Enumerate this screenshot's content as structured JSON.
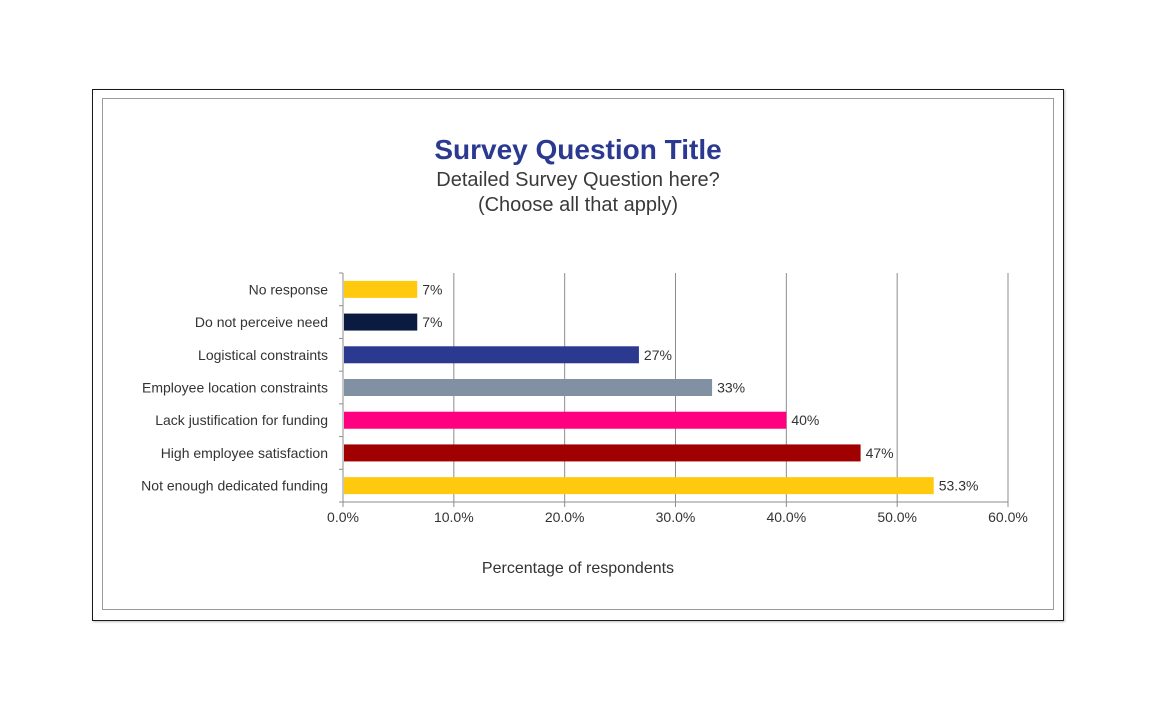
{
  "chart_data": {
    "type": "bar",
    "orientation": "horizontal",
    "title": "Survey Question Title",
    "subtitle_lines": [
      "Detailed Survey Question here?",
      "(Choose all that apply)"
    ],
    "xlabel": "Percentage of respondents",
    "ylabel": "",
    "xlim": [
      0,
      60
    ],
    "xticks": [
      0,
      10,
      20,
      30,
      40,
      50,
      60
    ],
    "xtick_labels": [
      "0.0%",
      "10.0%",
      "20.0%",
      "30.0%",
      "40.0%",
      "50.0%",
      "60.0%"
    ],
    "grid": "vertical",
    "legend": "none",
    "categories": [
      "No response",
      "Do not perceive need",
      "Logistical constraints",
      "Employee location constraints",
      "Lack justification for funding",
      "High employee satisfaction",
      "Not enough dedicated funding"
    ],
    "values": [
      6.7,
      6.7,
      26.7,
      33.3,
      40.0,
      46.7,
      53.3
    ],
    "data_labels": [
      "7%",
      "7%",
      "27%",
      "33%",
      "40%",
      "47%",
      "53.3%"
    ],
    "colors": [
      "#ffc90e",
      "#0b1a40",
      "#2b3990",
      "#8290a3",
      "#ff0080",
      "#a00000",
      "#ffc90e"
    ]
  }
}
